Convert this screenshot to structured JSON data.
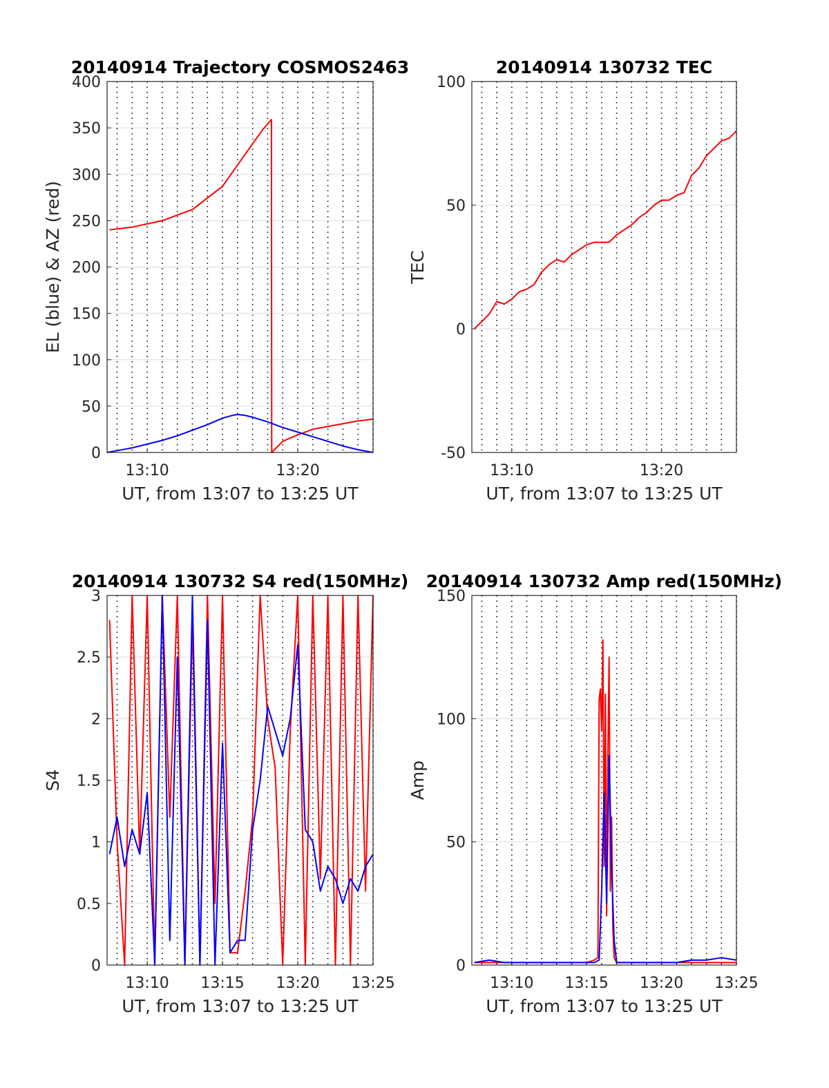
{
  "chart_data": [
    {
      "type": "line",
      "title": "20140914 Trajectory COSMOS2463",
      "xlabel": "UT, from 13:07 to 13:25 UT",
      "ylabel": "EL (blue) & AZ (red)",
      "xlim": [
        "13:07:20",
        "13:25:00"
      ],
      "ylim": [
        0,
        400
      ],
      "x_ticks": [
        "13:10",
        "13:20"
      ],
      "y_ticks": [
        "0",
        "50",
        "100",
        "150",
        "200",
        "250",
        "300",
        "350",
        "400"
      ],
      "grid": true,
      "series": [
        {
          "color": "#ff0000",
          "x": [
            "13:07:30",
            "13:09:00",
            "13:11:00",
            "13:13:00",
            "13:15:00",
            "13:16:00",
            "13:17:00",
            "13:17:40",
            "13:18:15",
            "13:18:16",
            "13:19:00",
            "13:20:00",
            "13:21:00",
            "13:22:00",
            "13:23:00",
            "13:24:00",
            "13:25:00"
          ],
          "y": [
            240,
            243,
            250,
            262,
            287,
            310,
            333,
            348,
            359,
            0,
            12,
            19,
            25,
            28,
            31,
            34,
            36
          ]
        },
        {
          "color": "#0000ff",
          "x": [
            "13:07:20",
            "13:08:00",
            "13:09:00",
            "13:10:00",
            "13:11:00",
            "13:12:00",
            "13:13:00",
            "13:14:00",
            "13:15:00",
            "13:15:40",
            "13:16:00",
            "13:16:30",
            "13:17:00",
            "13:18:00",
            "13:19:00",
            "13:20:00",
            "13:21:00",
            "13:22:00",
            "13:23:00",
            "13:24:00",
            "13:25:00"
          ],
          "y": [
            0,
            2,
            5,
            9,
            13,
            18,
            24,
            30,
            37,
            40,
            41,
            40,
            38,
            33,
            27,
            22,
            17,
            12,
            7,
            3,
            0
          ]
        }
      ]
    },
    {
      "type": "line",
      "title": "20140914 130732 TEC",
      "xlabel": "UT, from 13:07 to 13:25 UT",
      "ylabel": "TEC",
      "xlim": [
        "13:07:20",
        "13:25:00"
      ],
      "ylim": [
        -50,
        100
      ],
      "x_ticks": [
        "13:10",
        "13:20"
      ],
      "y_ticks": [
        "-50",
        "0",
        "50",
        "100"
      ],
      "grid": true,
      "series": [
        {
          "color": "#ff0000",
          "x": [
            "13:07:30",
            "13:08:00",
            "13:08:30",
            "13:09:00",
            "13:09:30",
            "13:10:00",
            "13:10:30",
            "13:11:00",
            "13:11:30",
            "13:12:00",
            "13:12:30",
            "13:13:00",
            "13:13:30",
            "13:14:00",
            "13:14:30",
            "13:15:00",
            "13:15:30",
            "13:16:00",
            "13:16:30",
            "13:17:00",
            "13:17:30",
            "13:18:00",
            "13:18:30",
            "13:19:00",
            "13:19:30",
            "13:20:00",
            "13:20:30",
            "13:21:00",
            "13:21:30",
            "13:22:00",
            "13:22:30",
            "13:23:00",
            "13:23:30",
            "13:24:00",
            "13:24:30",
            "13:25:00"
          ],
          "y": [
            0,
            3,
            6,
            11,
            10,
            12,
            15,
            16,
            18,
            23,
            26,
            28,
            27,
            30,
            32,
            34,
            35,
            35,
            35,
            38,
            40,
            42,
            45,
            47,
            50,
            52,
            52,
            54,
            55,
            62,
            65,
            70,
            73,
            76,
            77,
            80
          ]
        }
      ]
    },
    {
      "type": "line",
      "title": "20140914 130732 S4 red(150MHz)",
      "xlabel": "UT, from 13:07 to 13:25 UT",
      "ylabel": "S4",
      "xlim": [
        "13:07:20",
        "13:25:00"
      ],
      "ylim": [
        0,
        3
      ],
      "x_ticks": [
        "13:10",
        "13:15",
        "13:20",
        "13:25"
      ],
      "y_ticks": [
        "0",
        "0.5",
        "1",
        "1.5",
        "2",
        "2.5",
        "3"
      ],
      "grid": true,
      "series": [
        {
          "color": "#ff0000",
          "x": [
            "13:07:30",
            "13:08:00",
            "13:08:30",
            "13:09:00",
            "13:09:30",
            "13:10:00",
            "13:10:30",
            "13:11:00",
            "13:11:30",
            "13:12:00",
            "13:12:30",
            "13:13:00",
            "13:13:30",
            "13:14:00",
            "13:14:30",
            "13:15:00",
            "13:15:30",
            "13:16:00",
            "13:16:30",
            "13:17:00",
            "13:17:30",
            "13:18:00",
            "13:18:30",
            "13:19:00",
            "13:19:30",
            "13:20:00",
            "13:20:30",
            "13:21:00",
            "13:21:30",
            "13:22:00",
            "13:22:30",
            "13:23:00",
            "13:23:30",
            "13:24:00",
            "13:24:30",
            "13:25:00"
          ],
          "y": [
            2.8,
            1.0,
            0.0,
            3.0,
            0.9,
            3.0,
            0.0,
            3.0,
            1.2,
            3.0,
            0.0,
            2.8,
            0.0,
            3.0,
            0.5,
            3.0,
            0.1,
            0.1,
            0.6,
            1.2,
            3.0,
            2.0,
            1.6,
            0.0,
            1.9,
            3.0,
            0.0,
            3.0,
            0.7,
            3.0,
            0.0,
            3.0,
            0.0,
            3.0,
            0.6,
            3.0
          ]
        },
        {
          "color": "#0000ff",
          "x": [
            "13:07:30",
            "13:08:00",
            "13:08:30",
            "13:09:00",
            "13:09:30",
            "13:10:00",
            "13:10:30",
            "13:11:00",
            "13:11:30",
            "13:12:00",
            "13:12:30",
            "13:13:00",
            "13:13:30",
            "13:14:00",
            "13:14:30",
            "13:15:00",
            "13:15:30",
            "13:16:00",
            "13:16:30",
            "13:17:00",
            "13:17:30",
            "13:18:00",
            "13:18:30",
            "13:19:00",
            "13:19:30",
            "13:20:00",
            "13:20:30",
            "13:21:00",
            "13:21:30",
            "13:22:00",
            "13:22:30",
            "13:23:00",
            "13:23:30",
            "13:24:00",
            "13:24:30",
            "13:25:00"
          ],
          "y": [
            0.9,
            1.2,
            0.8,
            1.1,
            0.9,
            1.4,
            0.0,
            3.0,
            0.2,
            2.5,
            0.0,
            3.0,
            0.0,
            2.8,
            0.0,
            1.8,
            0.1,
            0.2,
            0.2,
            1.1,
            1.5,
            2.1,
            1.9,
            1.7,
            2.0,
            2.6,
            1.1,
            1.0,
            0.6,
            0.8,
            0.7,
            0.5,
            0.7,
            0.6,
            0.8,
            0.9
          ]
        }
      ]
    },
    {
      "type": "line",
      "title": "20140914 130732 Amp red(150MHz)",
      "xlabel": "UT, from 13:07 to 13:25 UT",
      "ylabel": "Amp",
      "xlim": [
        "13:07:20",
        "13:25:00"
      ],
      "ylim": [
        0,
        150
      ],
      "x_ticks": [
        "13:10",
        "13:15",
        "13:20",
        "13:25"
      ],
      "y_ticks": [
        "0",
        "50",
        "100",
        "150"
      ],
      "grid": true,
      "series": [
        {
          "color": "#ff0000",
          "x": [
            "13:07:30",
            "13:09:00",
            "13:11:00",
            "13:13:00",
            "13:15:00",
            "13:15:30",
            "13:15:45",
            "13:15:50",
            "13:15:55",
            "13:16:00",
            "13:16:05",
            "13:16:10",
            "13:16:15",
            "13:16:20",
            "13:16:25",
            "13:16:30",
            "13:16:35",
            "13:16:40",
            "13:16:45",
            "13:16:50",
            "13:16:55",
            "13:17:00",
            "13:18:00",
            "13:20:00",
            "13:22:00",
            "13:25:00"
          ],
          "y": [
            1,
            1,
            1,
            1,
            1,
            2,
            3,
            108,
            112,
            95,
            132,
            40,
            110,
            20,
            85,
            125,
            30,
            60,
            15,
            3,
            2,
            1,
            1,
            1,
            1,
            1
          ]
        },
        {
          "color": "#0000ff",
          "x": [
            "13:07:30",
            "13:08:30",
            "13:09:30",
            "13:10:30",
            "13:11:30",
            "13:12:30",
            "13:13:30",
            "13:14:30",
            "13:15:30",
            "13:15:50",
            "13:16:00",
            "13:16:10",
            "13:16:20",
            "13:16:30",
            "13:16:40",
            "13:16:50",
            "13:17:00",
            "13:18:00",
            "13:19:00",
            "13:20:00",
            "13:21:00",
            "13:22:00",
            "13:23:00",
            "13:24:00",
            "13:25:00"
          ],
          "y": [
            1,
            2,
            1,
            1,
            1,
            1,
            1,
            1,
            1,
            2,
            30,
            70,
            25,
            85,
            40,
            10,
            1,
            1,
            1,
            1,
            1,
            2,
            2,
            3,
            2
          ]
        }
      ]
    }
  ]
}
